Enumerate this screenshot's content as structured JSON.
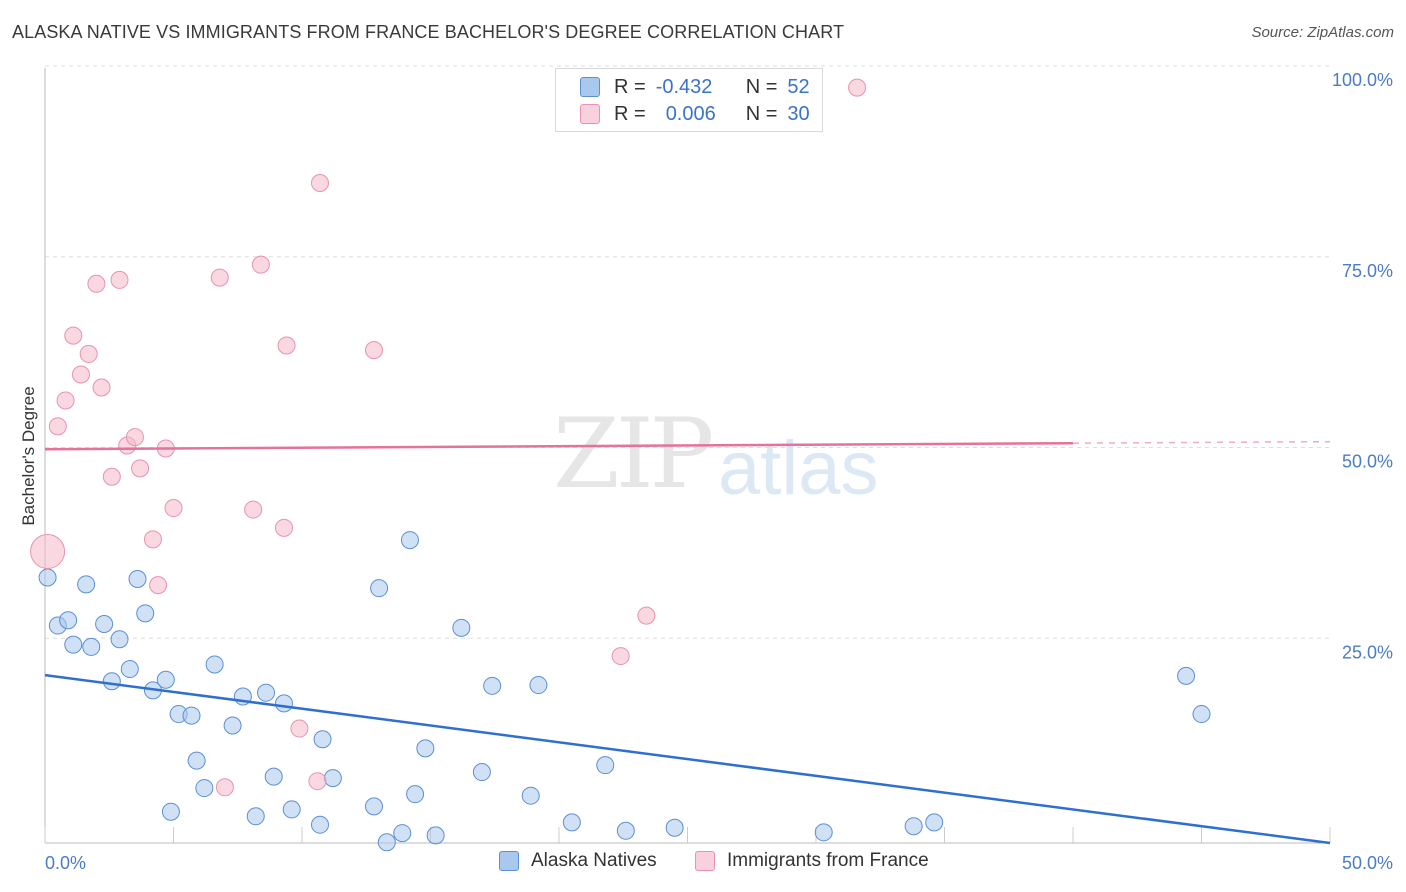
{
  "title": "ALASKA NATIVE VS IMMIGRANTS FROM FRANCE BACHELOR'S DEGREE CORRELATION CHART",
  "source": "Source: ZipAtlas.com",
  "watermark": {
    "zip": "ZIP",
    "atlas": "atlas"
  },
  "legend_box": {
    "rows": [
      {
        "r_label": "R =",
        "r_value": "-0.432",
        "n_label": "N =",
        "n_value": "52",
        "color": "#a9c8ee"
      },
      {
        "r_label": "R =",
        "r_value": "0.006",
        "n_label": "N =",
        "n_value": "30",
        "color": "#f6b8cb"
      }
    ]
  },
  "bottom_legend": [
    {
      "label": "Alaska Natives",
      "color": "#a9c8ee"
    },
    {
      "label": "Immigrants from France",
      "color": "#f6b8cb"
    }
  ],
  "chart_data": {
    "type": "scatter",
    "xlabel": "",
    "ylabel": "Bachelor's Degree",
    "xlim": [
      0,
      50
    ],
    "ylim": [
      0,
      100
    ],
    "x_tick_labels": [
      "0.0%",
      "50.0%"
    ],
    "y_tick_labels": [
      "25.0%",
      "50.0%",
      "75.0%",
      "100.0%"
    ],
    "y_ticks": [
      25,
      50,
      75,
      100
    ],
    "grid": true,
    "legend_position": "top-center",
    "series": [
      {
        "name": "Alaska Natives",
        "color": "#a9c8ee",
        "stroke": "#5b8fd6",
        "trend_color": "#2f6fd0",
        "trend": {
          "x0": 0,
          "y0": 22.0,
          "x1": 50,
          "y1": 0.0
        },
        "points": [
          [
            0.1,
            34.8
          ],
          [
            0.5,
            28.5
          ],
          [
            0.9,
            29.2
          ],
          [
            1.1,
            26.0
          ],
          [
            1.6,
            33.9
          ],
          [
            1.8,
            25.7
          ],
          [
            2.3,
            28.7
          ],
          [
            2.6,
            21.2
          ],
          [
            2.9,
            26.7
          ],
          [
            3.3,
            22.8
          ],
          [
            3.6,
            34.6
          ],
          [
            3.9,
            30.1
          ],
          [
            4.2,
            20.0
          ],
          [
            4.7,
            21.4
          ],
          [
            4.9,
            4.1
          ],
          [
            5.2,
            16.9
          ],
          [
            5.7,
            16.7
          ],
          [
            5.9,
            10.8
          ],
          [
            6.2,
            7.2
          ],
          [
            6.6,
            23.4
          ],
          [
            7.3,
            15.4
          ],
          [
            7.7,
            19.2
          ],
          [
            8.2,
            3.5
          ],
          [
            8.6,
            19.7
          ],
          [
            8.9,
            8.7
          ],
          [
            9.3,
            18.3
          ],
          [
            9.6,
            4.4
          ],
          [
            10.7,
            2.4
          ],
          [
            10.8,
            13.6
          ],
          [
            11.2,
            8.5
          ],
          [
            12.8,
            4.8
          ],
          [
            13.0,
            33.4
          ],
          [
            13.3,
            0.1
          ],
          [
            13.9,
            1.3
          ],
          [
            14.2,
            39.7
          ],
          [
            14.4,
            6.4
          ],
          [
            14.8,
            12.4
          ],
          [
            15.2,
            1.0
          ],
          [
            16.2,
            28.2
          ],
          [
            17.0,
            9.3
          ],
          [
            17.4,
            20.6
          ],
          [
            18.9,
            6.2
          ],
          [
            19.2,
            20.7
          ],
          [
            20.5,
            2.7
          ],
          [
            21.8,
            10.2
          ],
          [
            22.6,
            1.6
          ],
          [
            24.5,
            2.0
          ],
          [
            30.3,
            1.4
          ],
          [
            33.8,
            2.2
          ],
          [
            34.6,
            2.7
          ],
          [
            44.4,
            21.9
          ],
          [
            45.0,
            16.9
          ]
        ]
      },
      {
        "name": "Immigrants from France",
        "color": "#f6b8cb",
        "stroke": "#e992ae",
        "trend_color": "#e5729a",
        "trend": {
          "x0": 0,
          "y0": 51.6,
          "x1": 40,
          "y1": 52.4
        },
        "trend_dashed": {
          "x0": 40,
          "y0": 52.4,
          "x1": 50,
          "y1": 52.6
        },
        "points": [
          [
            0.1,
            38.2
          ],
          [
            0.5,
            54.6
          ],
          [
            0.8,
            58.0
          ],
          [
            1.1,
            66.5
          ],
          [
            1.4,
            61.4
          ],
          [
            1.7,
            64.1
          ],
          [
            2.0,
            73.3
          ],
          [
            2.2,
            59.7
          ],
          [
            2.6,
            48.0
          ],
          [
            2.9,
            73.8
          ],
          [
            3.2,
            52.1
          ],
          [
            3.5,
            53.2
          ],
          [
            3.7,
            49.1
          ],
          [
            4.2,
            39.8
          ],
          [
            4.4,
            33.8
          ],
          [
            4.7,
            51.7
          ],
          [
            5.0,
            43.9
          ],
          [
            6.8,
            74.1
          ],
          [
            7.0,
            7.3
          ],
          [
            8.1,
            43.7
          ],
          [
            8.4,
            75.8
          ],
          [
            9.3,
            41.3
          ],
          [
            9.4,
            65.2
          ],
          [
            9.9,
            15.0
          ],
          [
            10.6,
            8.1
          ],
          [
            10.7,
            86.5
          ],
          [
            12.8,
            64.6
          ],
          [
            22.4,
            24.5
          ],
          [
            23.4,
            29.8
          ],
          [
            31.6,
            99.0
          ]
        ]
      }
    ]
  }
}
